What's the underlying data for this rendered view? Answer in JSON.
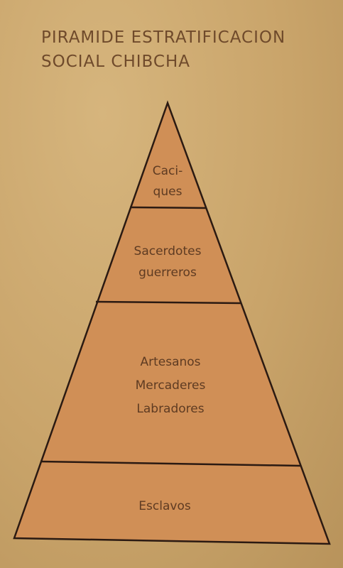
{
  "title": {
    "line1": "PIRAMIDE ESTRATIFICACION",
    "line2": "SOCIAL CHIBCHA"
  },
  "tiers": [
    {
      "id": "caciques",
      "lines": [
        "Caci-",
        "ques"
      ]
    },
    {
      "id": "sacerdotes",
      "lines": [
        "Sacerdotes",
        "guerreros"
      ]
    },
    {
      "id": "artesanos",
      "lines": [
        "Artesanos",
        "Mercaderes",
        "Labradores"
      ]
    },
    {
      "id": "esclavos",
      "lines": [
        "Esclavos"
      ]
    }
  ],
  "colors": {
    "background": "#c9a46a",
    "pyramid_fill": "#d08f56",
    "pyramid_stroke": "#2b1a12",
    "text": "#5e3b22"
  }
}
